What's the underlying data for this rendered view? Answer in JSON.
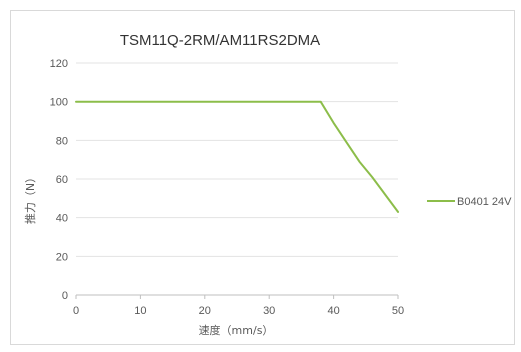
{
  "chart_data": {
    "type": "line",
    "title": "TSM11Q-2RM/AM11RS2DMA",
    "xlabel": "速度（mm/s）",
    "ylabel": "推力（N）",
    "xlim": [
      0,
      50
    ],
    "ylim": [
      0,
      120
    ],
    "xticks": [
      0,
      10,
      20,
      30,
      40,
      50
    ],
    "yticks": [
      0,
      20,
      40,
      60,
      80,
      100,
      120
    ],
    "grid": "horizontal",
    "legend_position": "right",
    "series": [
      {
        "name": "B0401 24V",
        "color": "#8cbd4a",
        "points": [
          {
            "x": 0,
            "y": 100
          },
          {
            "x": 38,
            "y": 100
          },
          {
            "x": 40,
            "y": 89
          },
          {
            "x": 42,
            "y": 79
          },
          {
            "x": 44,
            "y": 69
          },
          {
            "x": 46,
            "y": 61
          },
          {
            "x": 48,
            "y": 52
          },
          {
            "x": 50,
            "y": 43
          }
        ]
      }
    ]
  }
}
